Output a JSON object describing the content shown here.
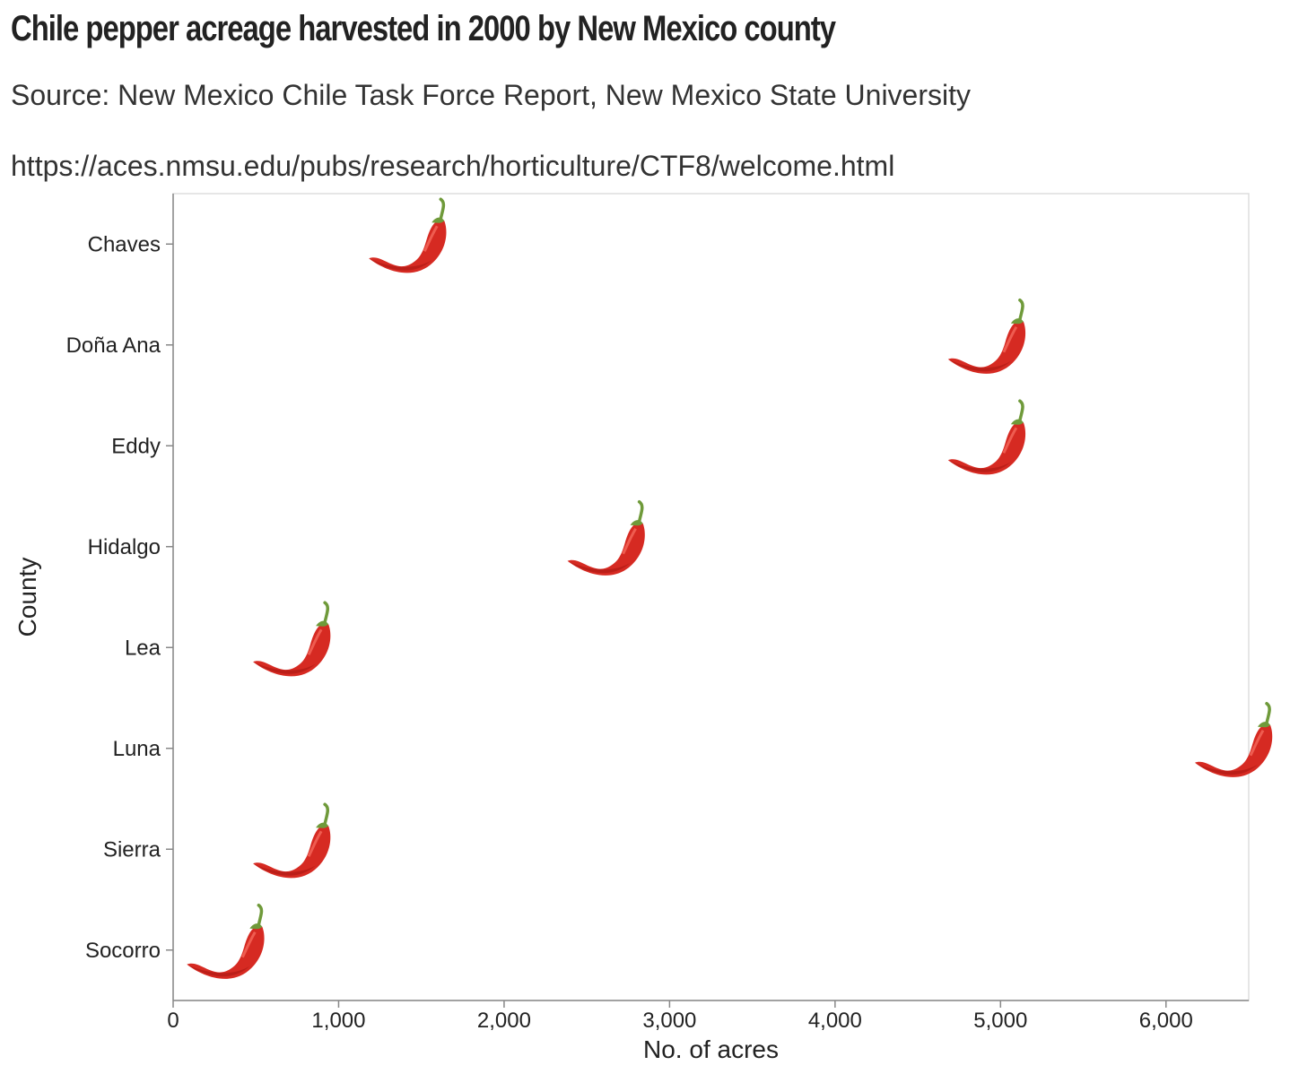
{
  "title": "Chile pepper acreage harvested in 2000 by New Mexico county",
  "subtitle": [
    "Source: New Mexico Chile Task Force Report, New Mexico State University",
    "https://aces.nmsu.edu/pubs/research/horticulture/CTF8/welcome.html"
  ],
  "chart_data": {
    "type": "scatter",
    "marker": "chile-pepper-icon",
    "xlabel": "No. of acres",
    "ylabel": "County",
    "xlim": [
      0,
      6500
    ],
    "x_ticks": [
      0,
      1000,
      2000,
      3000,
      4000,
      5000,
      6000
    ],
    "x_tick_labels": [
      "0",
      "1,000",
      "2,000",
      "3,000",
      "4,000",
      "5,000",
      "6,000"
    ],
    "categories": [
      "Chaves",
      "Doña Ana",
      "Eddy",
      "Hidalgo",
      "Lea",
      "Luna",
      "Sierra",
      "Socorro"
    ],
    "values": [
      1400,
      4900,
      4900,
      2600,
      700,
      6500,
      700,
      300
    ],
    "grid": false,
    "colors": {
      "pepper_body": "#d62a22",
      "pepper_dark": "#a81812",
      "pepper_stem": "#6f9a3a",
      "axis": "#888888",
      "frame": "#dddddd"
    }
  }
}
